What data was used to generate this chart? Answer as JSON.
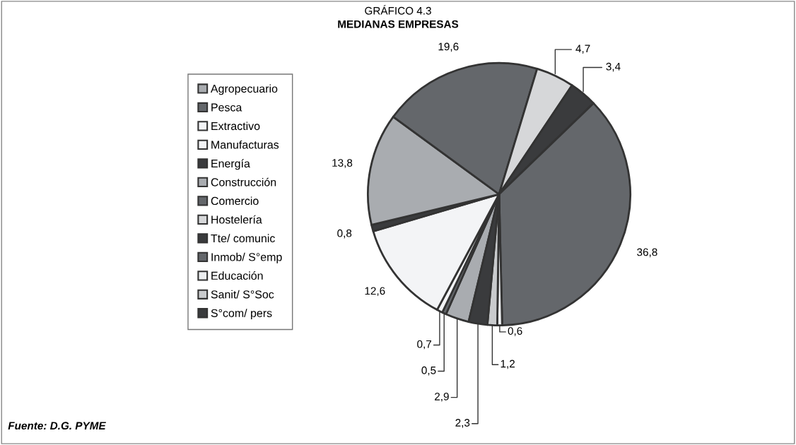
{
  "chart_data": {
    "type": "pie",
    "title": "GRÁFICO 4.3",
    "subtitle": "MEDIANAS EMPRESAS",
    "categories": [
      "Agropecuario",
      "Pesca",
      "Extractivo",
      "Manufacturas",
      "Energía",
      "Construcción",
      "Comercio",
      "Hostelería",
      "Tte/ comunic",
      "Inmob/ S°emp",
      "Educación",
      "Sanit/ S°Soc",
      "S°com/ pers"
    ],
    "values": [
      2.9,
      0.5,
      0.7,
      12.6,
      0.8,
      13.8,
      19.6,
      4.7,
      3.4,
      36.8,
      0.6,
      1.2,
      2.3
    ],
    "value_labels": [
      "2,9",
      "0,5",
      "0,7",
      "12,6",
      "0,8",
      "13,8",
      "19,6",
      "4,7",
      "3,4",
      "36,8",
      "0,6",
      "1,2",
      "2,3"
    ],
    "colors": [
      "#a9acb0",
      "#64676b",
      "#f3f4f6",
      "#f3f4f6",
      "#3a3b3d",
      "#a9acb0",
      "#64676b",
      "#d6d7d9",
      "#3a3b3d",
      "#64676b",
      "#eceef0",
      "#c9cbcd",
      "#3a3b3d"
    ],
    "legend": "left",
    "annotations": [
      "Fuente: D.G. PYME"
    ]
  }
}
